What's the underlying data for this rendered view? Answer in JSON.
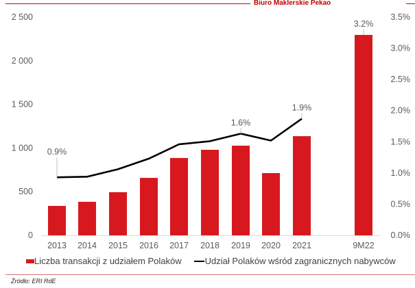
{
  "header": {
    "brand": "Biuro Maklerskie Pekao",
    "line_color": "#b5121b"
  },
  "chart_data": {
    "type": "bar",
    "title": "",
    "categories": [
      "2013",
      "2014",
      "2015",
      "2016",
      "2017",
      "2018",
      "2019",
      "2020",
      "2021",
      "9M22"
    ],
    "series": [
      {
        "name": "Liczba transakcji z udziałem Polaków",
        "type": "bar",
        "axis": "left",
        "color": "#d7191f",
        "values": [
          337,
          384,
          494,
          658,
          886,
          980,
          1027,
          713,
          1136,
          2296
        ]
      },
      {
        "name": "Udział Polaków wśród zagranicznych nabywców",
        "type": "line",
        "axis": "right",
        "color": "#000000",
        "values": [
          0.93,
          0.94,
          1.06,
          1.23,
          1.46,
          1.51,
          1.63,
          1.52,
          1.87,
          3.2
        ],
        "unit": "%"
      }
    ],
    "data_labels": [
      {
        "category": "2013",
        "text": "0.9%"
      },
      {
        "category": "2019",
        "text": "1.6%"
      },
      {
        "category": "2021",
        "text": "1.9%"
      },
      {
        "category": "9M22",
        "text": "3.2%"
      }
    ],
    "left_axis": {
      "ticks": [
        "0",
        "500",
        "1 000",
        "1 500",
        "2 000",
        "2 500"
      ],
      "ylim": [
        0,
        2500
      ]
    },
    "right_axis": {
      "ticks": [
        "0.0%",
        "0.5%",
        "1.0%",
        "1.5%",
        "2.0%",
        "2.5%",
        "3.0%",
        "3.5%"
      ],
      "ylim": [
        0,
        3.5
      ]
    },
    "xlabel": "",
    "ylabel": "",
    "grid": false,
    "legend_position": "bottom"
  },
  "legend": {
    "bar_label": "Liczba transakcji z udziałem Polaków",
    "line_label": "Udział Polaków wśród zagranicznych nabywców"
  },
  "footer": {
    "source": "Źródło: ERI RdE"
  }
}
